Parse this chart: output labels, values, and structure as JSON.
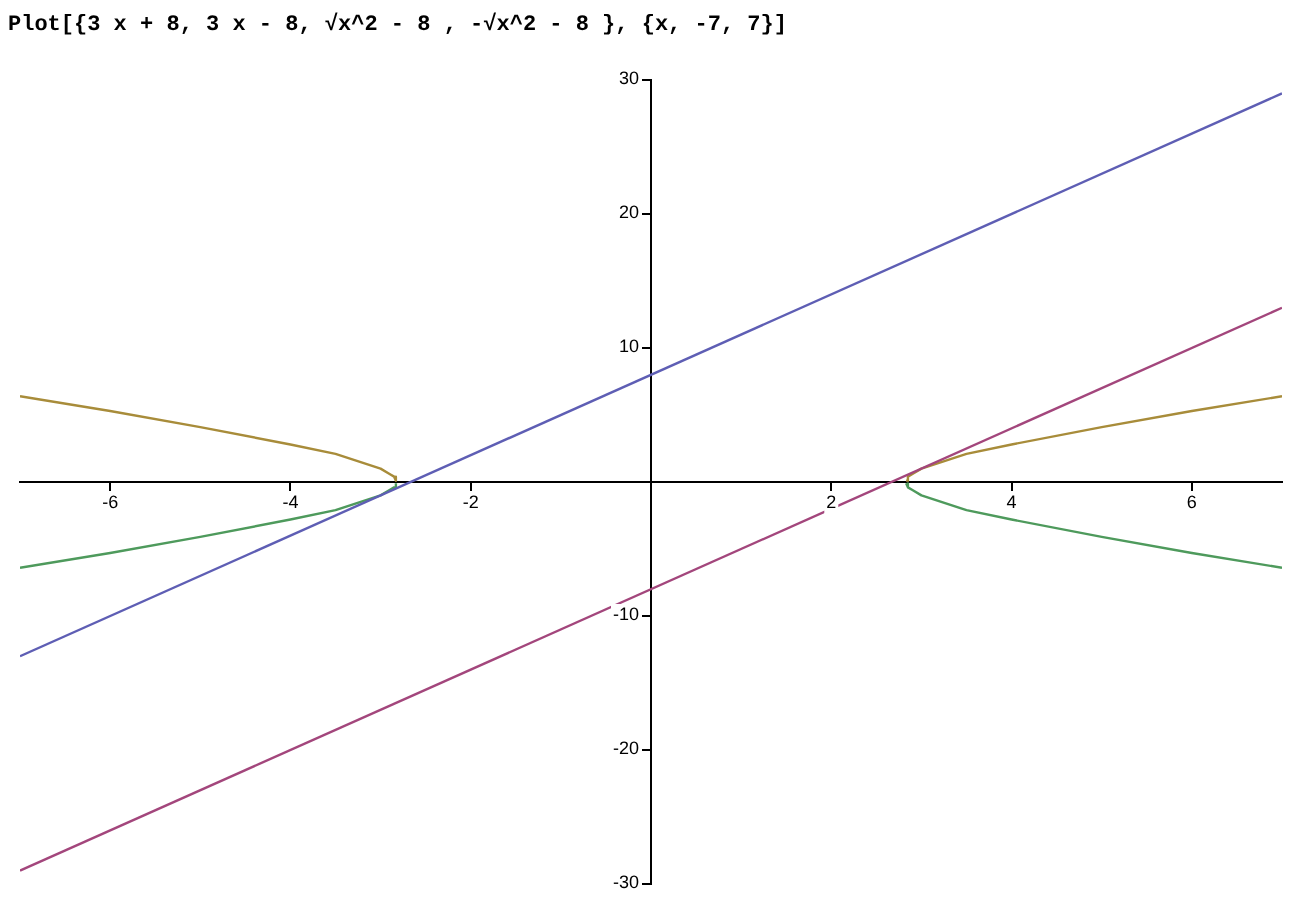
{
  "chart_data": {
    "type": "line",
    "title": "Plot[{3 x + 8, 3 x - 8, √x^2 - 8 , -√x^2 - 8 }, {x, -7, 7}]",
    "xlim": [
      -7,
      7
    ],
    "ylim": [
      -30,
      30
    ],
    "xticks": [
      -6,
      -4,
      -2,
      2,
      4,
      6
    ],
    "yticks": [
      -30,
      -20,
      -10,
      10,
      20,
      30
    ],
    "grid": false,
    "legend": false,
    "marker": "none",
    "series": [
      {
        "color": "#5e5eb4",
        "x": [
          -7,
          7
        ],
        "values": [
          -13,
          29
        ]
      },
      {
        "color": "#a3467c",
        "x": [
          -7,
          7
        ],
        "values": [
          -29,
          13
        ]
      },
      {
        "color": "#a88c3a",
        "x": [
          -7,
          -6,
          -5,
          -4,
          -3.5,
          -3,
          -2.9,
          -2.85,
          -2.83,
          0,
          2.83,
          2.85,
          2.9,
          3,
          3.5,
          4,
          5,
          6,
          7
        ],
        "values": [
          6.4,
          5.3,
          4.1,
          2.8,
          2.1,
          1,
          0.6,
          0.4,
          0.1,
          null,
          0.1,
          0.4,
          0.6,
          1,
          2.1,
          2.8,
          4.1,
          5.3,
          6.4
        ]
      },
      {
        "color": "#4e9a5c",
        "x": [
          -7,
          -6,
          -5,
          -4,
          -3.5,
          -3,
          -2.9,
          -2.85,
          -2.83,
          0,
          2.83,
          2.85,
          2.9,
          3,
          3.5,
          4,
          5,
          6,
          7
        ],
        "values": [
          -6.4,
          -5.3,
          -4.1,
          -2.8,
          -2.1,
          -1,
          -0.6,
          -0.4,
          -0.1,
          null,
          -0.1,
          -0.4,
          -0.6,
          -1,
          -2.1,
          -2.8,
          -4.1,
          -5.3,
          -6.4
        ]
      }
    ]
  }
}
